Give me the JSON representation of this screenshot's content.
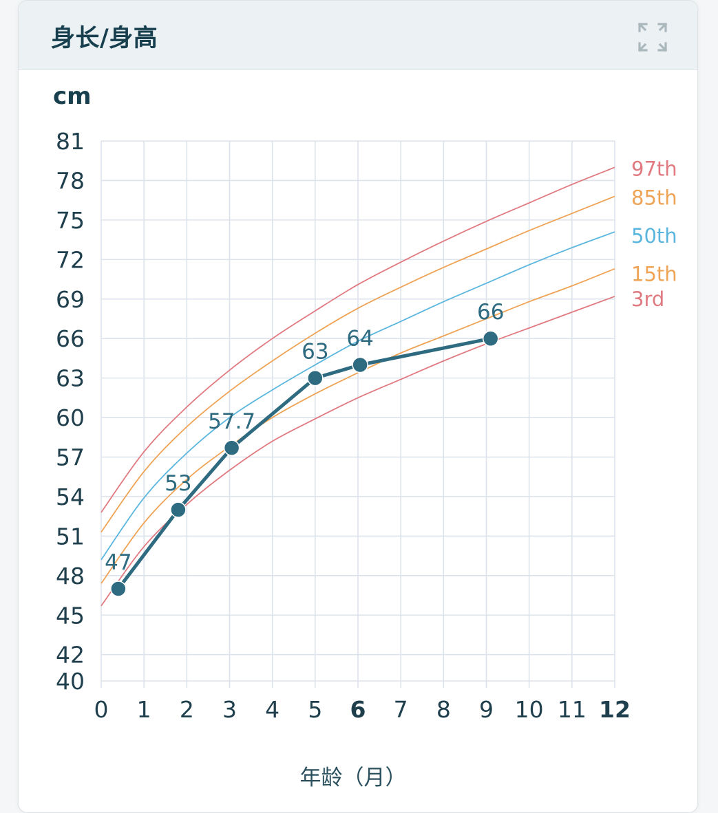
{
  "panel": {
    "title": "身长/身高",
    "expand_icon": "expand-icon"
  },
  "chart_data": {
    "type": "line",
    "ylabel": "cm",
    "xlabel": "年龄（月）",
    "xlim": [
      0,
      12
    ],
    "ylim": [
      40,
      81
    ],
    "x_ticks": [
      "0",
      "1",
      "2",
      "3",
      "4",
      "5",
      "6",
      "7",
      "8",
      "9",
      "10",
      "11",
      "12"
    ],
    "x_ticks_bold": [
      "6",
      "12"
    ],
    "y_ticks": [
      "40",
      "42",
      "45",
      "48",
      "51",
      "54",
      "57",
      "60",
      "63",
      "66",
      "69",
      "72",
      "75",
      "78",
      "81"
    ],
    "grid": true,
    "series": [
      {
        "name": "",
        "role": "measurement",
        "color": "#2e6a80",
        "x": [
          0.4,
          1.8,
          3.05,
          5.0,
          6.05,
          9.1
        ],
        "y": [
          47,
          53,
          57.7,
          63,
          64,
          66
        ],
        "labels": [
          "47",
          "53",
          "57.7",
          "63",
          "64",
          "66"
        ]
      },
      {
        "name": "97th",
        "color": "#e07a80",
        "x": [
          0,
          1,
          2,
          3,
          4,
          5,
          6,
          7,
          8,
          9,
          10,
          11,
          12
        ],
        "y": [
          52.8,
          57.4,
          60.8,
          63.6,
          66.0,
          68.1,
          70.1,
          71.8,
          73.4,
          74.9,
          76.3,
          77.7,
          79.0
        ]
      },
      {
        "name": "85th",
        "color": "#eea355",
        "x": [
          0,
          1,
          2,
          3,
          4,
          5,
          6,
          7,
          8,
          9,
          10,
          11,
          12
        ],
        "y": [
          51.3,
          55.9,
          59.3,
          62.0,
          64.3,
          66.4,
          68.3,
          69.9,
          71.4,
          72.8,
          74.2,
          75.5,
          76.8
        ]
      },
      {
        "name": "50th",
        "color": "#5bb6de",
        "x": [
          0,
          1,
          2,
          3,
          4,
          5,
          6,
          7,
          8,
          9,
          10,
          11,
          12
        ],
        "y": [
          49.2,
          53.9,
          57.3,
          60.0,
          62.1,
          64.0,
          65.8,
          67.3,
          68.8,
          70.2,
          71.6,
          72.9,
          74.1
        ]
      },
      {
        "name": "15th",
        "color": "#eea355",
        "x": [
          0,
          1,
          2,
          3,
          4,
          5,
          6,
          7,
          8,
          9,
          10,
          11,
          12
        ],
        "y": [
          47.4,
          52.0,
          55.3,
          57.8,
          60.0,
          61.8,
          63.4,
          64.9,
          66.2,
          67.5,
          68.8,
          70.0,
          71.3
        ]
      },
      {
        "name": "3rd",
        "color": "#e07a80",
        "x": [
          0,
          1,
          2,
          3,
          4,
          5,
          6,
          7,
          8,
          9,
          10,
          11,
          12
        ],
        "y": [
          45.7,
          50.2,
          53.4,
          56.0,
          58.2,
          59.9,
          61.5,
          62.9,
          64.3,
          65.6,
          66.8,
          68.0,
          69.2
        ]
      }
    ]
  },
  "colors": {
    "header_bg": "#ecf2f4",
    "title": "#173f4e",
    "axis_text": "#1f3f4d",
    "grid": "#dde3ec",
    "measurement": "#2e6a80"
  }
}
